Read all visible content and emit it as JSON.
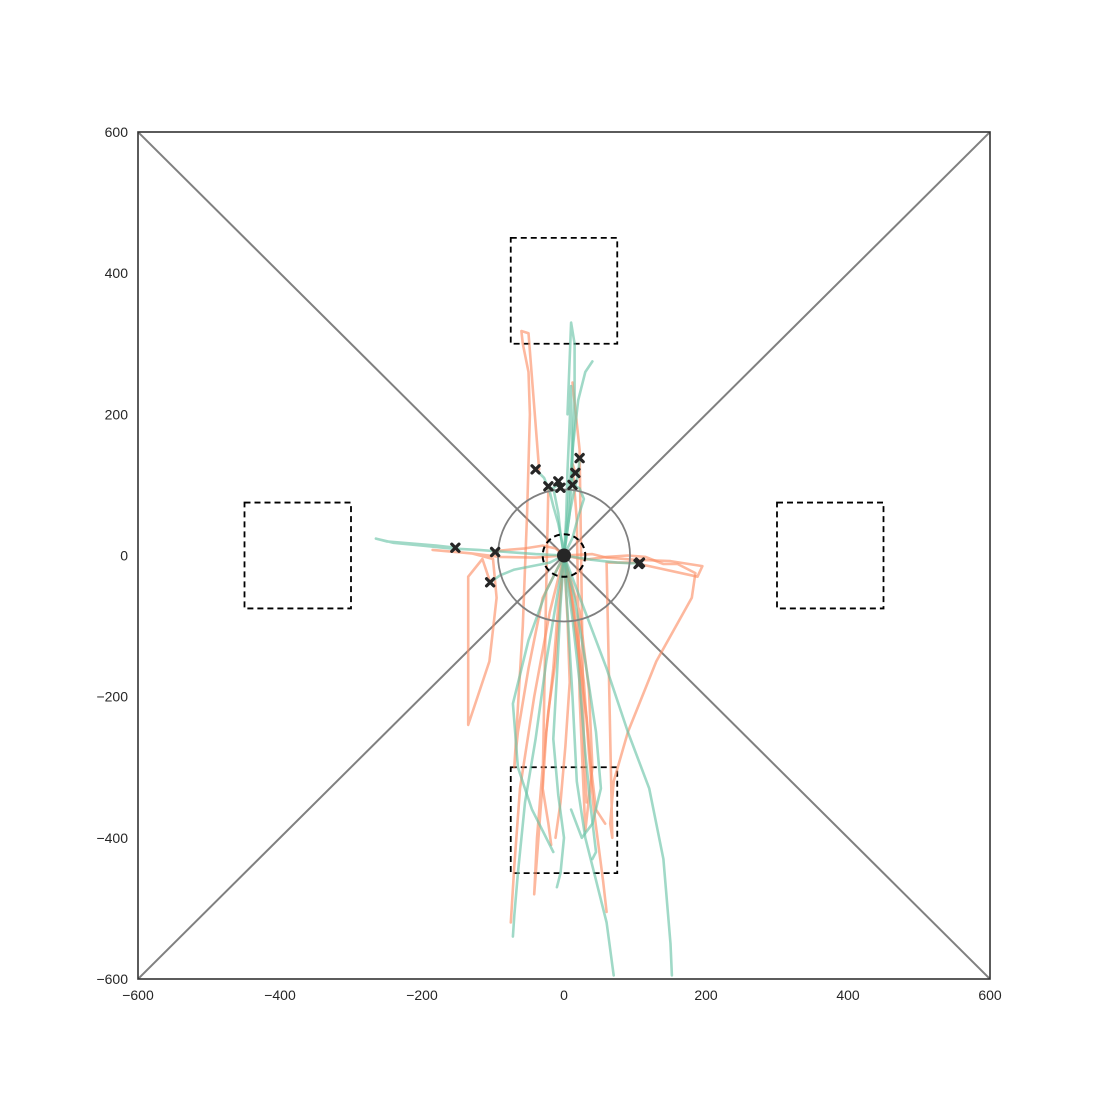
{
  "chart_data": {
    "type": "line",
    "title": "",
    "xlabel": "",
    "ylabel": "",
    "xlim": [
      -600,
      600
    ],
    "ylim": [
      -600,
      600
    ],
    "grid": false,
    "x_ticks": [
      -600,
      -400,
      -200,
      0,
      200,
      400,
      600
    ],
    "y_ticks": [
      -600,
      -400,
      -200,
      0,
      200,
      400,
      600
    ],
    "x_tick_labels": [
      "−600",
      "−400",
      "−200",
      "0",
      "200",
      "400",
      "600"
    ],
    "y_tick_labels": [
      "−600",
      "−400",
      "−200",
      "0",
      "200",
      "400",
      "600"
    ],
    "colors": {
      "series_a": "#fc8d62",
      "series_b": "#66c2a5",
      "reference_lines": "#808080",
      "targets": "#000000",
      "markers": "#262626",
      "axes_frame": "#333333"
    },
    "reference_lines": [
      {
        "x": [
          -600,
          600
        ],
        "y": [
          -600,
          600
        ]
      },
      {
        "x": [
          -600,
          600
        ],
        "y": [
          600,
          -600
        ]
      }
    ],
    "circles": [
      {
        "cx": 0,
        "cy": 0,
        "r": 93,
        "style": "solid"
      },
      {
        "cx": 0,
        "cy": 0,
        "r": 30,
        "style": "dashed"
      }
    ],
    "start_point": {
      "x": 0,
      "y": 0
    },
    "target_boxes": [
      {
        "x": [
          -75,
          75
        ],
        "y": [
          300,
          450
        ]
      },
      {
        "x": [
          -75,
          75
        ],
        "y": [
          -450,
          -300
        ]
      },
      {
        "x": [
          -450,
          -300
        ],
        "y": [
          -75,
          75
        ]
      },
      {
        "x": [
          300,
          450
        ],
        "y": [
          -75,
          75
        ]
      }
    ],
    "end_markers": [
      {
        "x": -40,
        "y": 122
      },
      {
        "x": -22,
        "y": 98
      },
      {
        "x": -8,
        "y": 105
      },
      {
        "x": -5,
        "y": 96
      },
      {
        "x": 12,
        "y": 100
      },
      {
        "x": 16,
        "y": 117
      },
      {
        "x": 22,
        "y": 138
      },
      {
        "x": -153,
        "y": 11
      },
      {
        "x": -97,
        "y": 5
      },
      {
        "x": -104,
        "y": -38
      },
      {
        "x": 105,
        "y": -12
      },
      {
        "x": 107,
        "y": -10
      }
    ],
    "series": [
      {
        "color_key": "series_a",
        "trajectories": [
          {
            "x": [
              0,
              10,
              20,
              32,
              38,
              45,
              58
            ],
            "y": [
              0,
              -60,
              -140,
              -230,
              -300,
              -360,
              -380
            ]
          },
          {
            "x": [
              0,
              -8,
              -15,
              -25,
              -30,
              -22,
              -18
            ],
            "y": [
              0,
              -70,
              -160,
              -250,
              -330,
              -380,
              -410
            ]
          },
          {
            "x": [
              0,
              -20,
              -42,
              -62,
              -70,
              -75
            ],
            "y": [
              0,
              -80,
              -200,
              -330,
              -440,
              -520
            ]
          },
          {
            "x": [
              0,
              5,
              8,
              2,
              -5,
              -12
            ],
            "y": [
              0,
              -90,
              -180,
              -270,
              -350,
              -400
            ]
          },
          {
            "x": [
              0,
              15,
              28,
              35,
              42,
              55,
              60
            ],
            "y": [
              0,
              -80,
              -180,
              -280,
              -360,
              -460,
              -505
            ]
          },
          {
            "x": [
              0,
              -30,
              -50,
              -65,
              -70,
              -58,
              -52,
              -48,
              -50,
              -58,
              -60,
              -50,
              -35
            ],
            "y": [
              0,
              -60,
              -160,
              -250,
              -300,
              -100,
              60,
              200,
              260,
              300,
              318,
              315,
              122
            ]
          },
          {
            "x": [
              0,
              -5,
              -12,
              -22,
              -30,
              -38,
              -42,
              -30,
              -25,
              -22
            ],
            "y": [
              0,
              -60,
              -150,
              -220,
              -300,
              -400,
              -480,
              -320,
              -40,
              98
            ]
          },
          {
            "x": [
              0,
              10,
              22,
              28,
              32,
              28,
              22,
              12
            ],
            "y": [
              0,
              -50,
              -150,
              -260,
              -350,
              -280,
              150,
              245
            ]
          },
          {
            "x": [
              0,
              -40,
              -90,
              -130,
              -185,
              -130,
              -100,
              -95,
              -105,
              -135,
              -135,
              -115,
              -104
            ],
            "y": [
              0,
              -3,
              -2,
              3,
              8,
              3,
              -5,
              -60,
              -150,
              -240,
              -30,
              -5,
              -38
            ]
          },
          {
            "x": [
              0,
              30,
              60,
              90,
              115,
              140,
              160,
              185,
              180,
              130,
              90,
              70,
              65,
              68,
              60,
              107
            ],
            "y": [
              0,
              -6,
              -2,
              0,
              -2,
              -12,
              -12,
              -25,
              -60,
              -150,
              -250,
              -320,
              -380,
              -400,
              -10,
              -10
            ]
          },
          {
            "x": [
              0,
              40,
              60,
              98,
              150,
              195,
              188,
              120,
              105
            ],
            "y": [
              0,
              2,
              -3,
              -6,
              -8,
              -15,
              -30,
              -15,
              -12
            ]
          },
          {
            "x": [
              0,
              22,
              35,
              40,
              30,
              22,
              18,
              12,
              16
            ],
            "y": [
              0,
              -80,
              -190,
              -300,
              -390,
              -200,
              50,
              130,
              117
            ]
          },
          {
            "x": [
              0,
              -12,
              -30,
              -55,
              -80,
              -100,
              -97
            ],
            "y": [
              0,
              10,
              14,
              10,
              8,
              6,
              5
            ]
          }
        ]
      },
      {
        "color_key": "series_b",
        "trajectories": [
          {
            "x": [
              0,
              -10,
              -25,
              -40,
              -55,
              -65,
              -70,
              -72
            ],
            "y": [
              0,
              -60,
              -150,
              -260,
              -350,
              -450,
              -510,
              -540
            ]
          },
          {
            "x": [
              0,
              12,
              22,
              30,
              38,
              45,
              40
            ],
            "y": [
              0,
              -90,
              -180,
              -280,
              -360,
              -420,
              -430
            ]
          },
          {
            "x": [
              0,
              30,
              60,
              90,
              120,
              140,
              150,
              152
            ],
            "y": [
              0,
              -80,
              -160,
              -250,
              -330,
              -430,
              -550,
              -595
            ]
          },
          {
            "x": [
              0,
              5,
              12,
              18,
              30,
              45,
              60,
              70
            ],
            "y": [
              0,
              -80,
              -200,
              -320,
              -400,
              -460,
              -520,
              -595
            ]
          },
          {
            "x": [
              0,
              -5,
              -10,
              -15,
              -8,
              0,
              -5,
              -10
            ],
            "y": [
              0,
              -70,
              -170,
              -260,
              -340,
              -400,
              -450,
              -470
            ]
          },
          {
            "x": [
              0,
              5,
              12,
              20,
              30,
              40
            ],
            "y": [
              0,
              60,
              150,
              220,
              260,
              275
            ]
          },
          {
            "x": [
              0,
              8,
              12,
              15,
              15,
              10,
              5
            ],
            "y": [
              0,
              60,
              140,
              220,
              300,
              330,
              200
            ]
          },
          {
            "x": [
              0,
              3,
              5,
              8,
              10,
              12
            ],
            "y": [
              0,
              50,
              120,
              190,
              240,
              100
            ]
          },
          {
            "x": [
              0,
              -40,
              -80,
              -120,
              -160,
              -200,
              -240,
              -265,
              -250,
              -180,
              -153
            ],
            "y": [
              0,
              2,
              5,
              8,
              10,
              14,
              18,
              24,
              20,
              14,
              11
            ]
          },
          {
            "x": [
              0,
              -25,
              -50,
              -72,
              -65,
              -45,
              -30,
              -15
            ],
            "y": [
              0,
              -50,
              -120,
              -210,
              -300,
              -360,
              -390,
              -420
            ]
          },
          {
            "x": [
              0,
              15,
              30,
              45,
              52,
              40,
              25,
              10
            ],
            "y": [
              0,
              -60,
              -150,
              -250,
              -330,
              -380,
              -400,
              -360
            ]
          },
          {
            "x": [
              0,
              -5,
              -8,
              -12,
              -15,
              -8,
              -5
            ],
            "y": [
              0,
              30,
              60,
              80,
              96,
              100,
              96
            ]
          },
          {
            "x": [
              0,
              12,
              20,
              28,
              22,
              12
            ],
            "y": [
              0,
              25,
              55,
              80,
              95,
              100
            ]
          },
          {
            "x": [
              0,
              -20,
              -45,
              -70,
              -90,
              -104
            ],
            "y": [
              0,
              -10,
              -15,
              -20,
              -28,
              -38
            ]
          },
          {
            "x": [
              0,
              20,
              38,
              55,
              75,
              95,
              107
            ],
            "y": [
              0,
              -3,
              -6,
              -8,
              -10,
              -11,
              -10
            ]
          },
          {
            "x": [
              0,
              -3,
              -8,
              -15,
              -20,
              -28,
              -40
            ],
            "y": [
              0,
              20,
              45,
              70,
              90,
              110,
              122
            ]
          },
          {
            "x": [
              0,
              4,
              8,
              14,
              20,
              22
            ],
            "y": [
              0,
              30,
              60,
              90,
              115,
              138
            ]
          }
        ]
      }
    ]
  }
}
